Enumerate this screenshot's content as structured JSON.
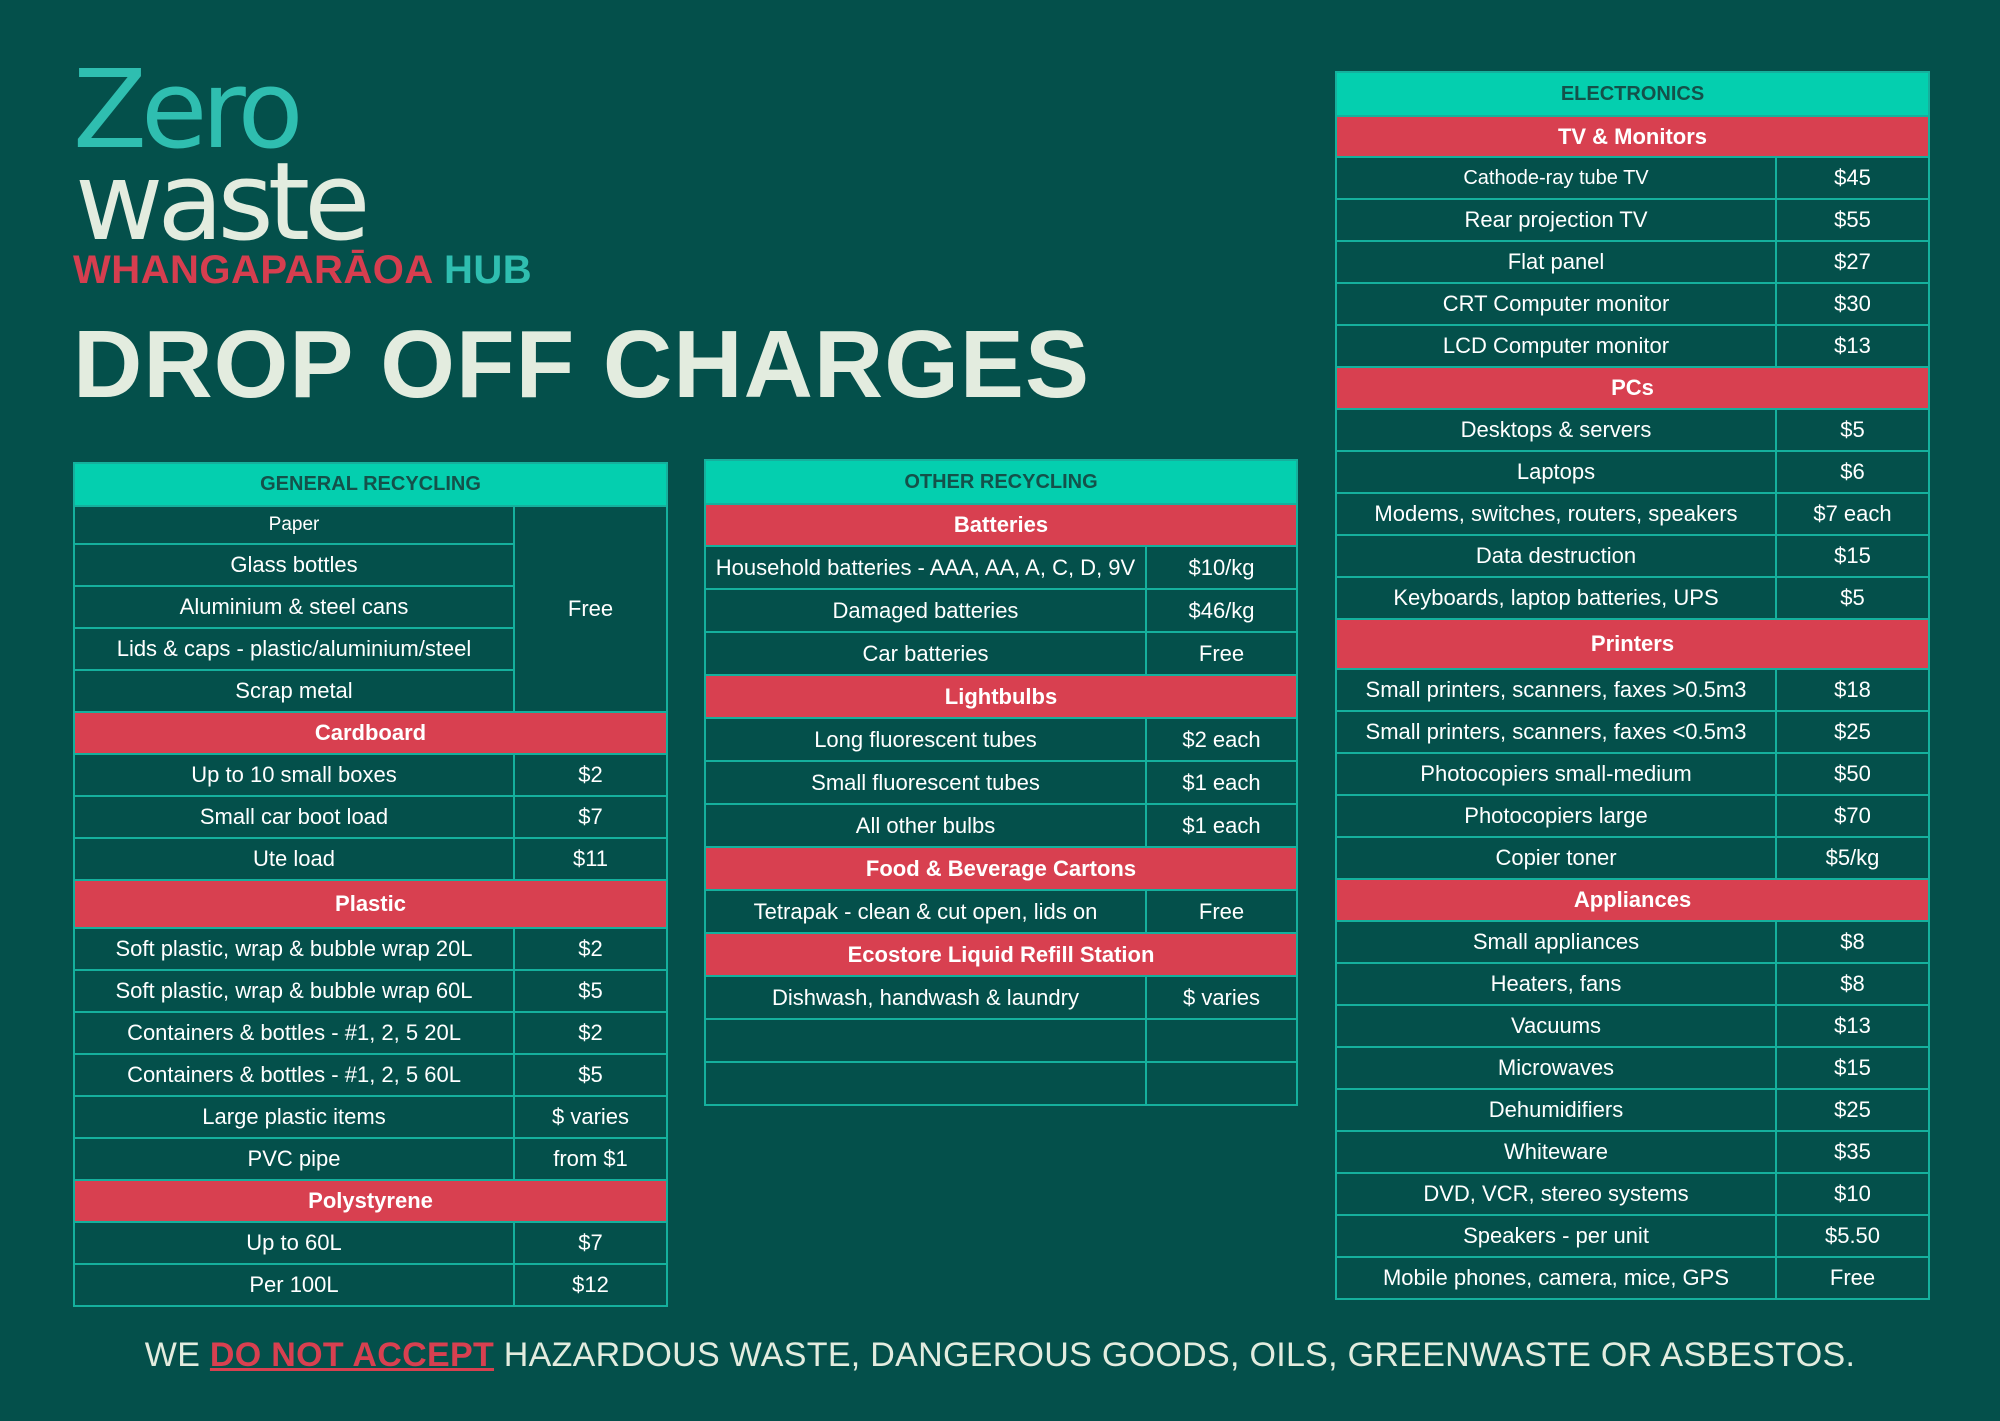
{
  "logo": {
    "line1": "Zero",
    "line2": "waste",
    "sub_red": "WHANGAPARĀOA",
    "sub_teal": "HUB"
  },
  "title": "DROP OFF CHARGES",
  "colors": {
    "background": "#04504b",
    "table_header": "#04cfaf",
    "section_header": "#d84050",
    "border": "#15b09d",
    "title_text": "#e3ecdf"
  },
  "general": {
    "header": "GENERAL RECYCLING",
    "free_items": [
      "Paper",
      "Glass bottles",
      "Aluminium & steel cans",
      "Lids & caps - plastic/aluminium/steel",
      "Scrap metal"
    ],
    "free_price": "Free",
    "cardboard": {
      "title": "Cardboard",
      "rows": [
        {
          "item": "Up to 10 small boxes",
          "price": "$2"
        },
        {
          "item": "Small car boot load",
          "price": "$7"
        },
        {
          "item": "Ute load",
          "price": "$11"
        }
      ]
    },
    "plastic": {
      "title": "Plastic",
      "rows": [
        {
          "item": "Soft plastic, wrap & bubble wrap 20L",
          "price": "$2"
        },
        {
          "item": "Soft plastic, wrap & bubble wrap 60L",
          "price": "$5"
        },
        {
          "item": "Containers & bottles - #1, 2, 5 20L",
          "price": "$2"
        },
        {
          "item": "Containers & bottles - #1, 2, 5 60L",
          "price": "$5"
        },
        {
          "item": "Large plastic items",
          "price": "$ varies"
        },
        {
          "item": "PVC pipe",
          "price": "from $1"
        }
      ]
    },
    "polystyrene": {
      "title": "Polystyrene",
      "rows": [
        {
          "item": "Up to 60L",
          "price": "$7"
        },
        {
          "item": "Per 100L",
          "price": "$12"
        }
      ]
    }
  },
  "other": {
    "header": "OTHER RECYCLING",
    "batteries": {
      "title": "Batteries",
      "rows": [
        {
          "item": "Household batteries - AAA, AA, A, C, D, 9V",
          "price": "$10/kg"
        },
        {
          "item": "Damaged batteries",
          "price": "$46/kg"
        },
        {
          "item": "Car batteries",
          "price": "Free"
        }
      ]
    },
    "lightbulbs": {
      "title": "Lightbulbs",
      "rows": [
        {
          "item": "Long fluorescent tubes",
          "price": "$2 each"
        },
        {
          "item": "Small fluorescent tubes",
          "price": "$1 each"
        },
        {
          "item": "All other bulbs",
          "price": "$1 each"
        }
      ]
    },
    "cartons": {
      "title": "Food & Beverage Cartons",
      "rows": [
        {
          "item": "Tetrapak - clean & cut open, lids on",
          "price": "Free"
        }
      ]
    },
    "ecostore": {
      "title": "Ecostore Liquid Refill Station",
      "rows": [
        {
          "item": "Dishwash, handwash & laundry",
          "price": "$ varies"
        }
      ]
    }
  },
  "electronics": {
    "header": "ELECTRONICS",
    "tv": {
      "title": "TV & Monitors",
      "rows": [
        {
          "item": "Cathode-ray tube TV",
          "price": "$45"
        },
        {
          "item": "Rear projection TV",
          "price": "$55"
        },
        {
          "item": "Flat panel",
          "price": "$27"
        },
        {
          "item": "CRT Computer monitor",
          "price": "$30"
        },
        {
          "item": "LCD Computer monitor",
          "price": "$13"
        }
      ]
    },
    "pcs": {
      "title": "PCs",
      "rows": [
        {
          "item": "Desktops & servers",
          "price": "$5"
        },
        {
          "item": "Laptops",
          "price": "$6"
        },
        {
          "item": "Modems, switches, routers, speakers",
          "price": "$7 each"
        },
        {
          "item": "Data destruction",
          "price": "$15"
        },
        {
          "item": "Keyboards, laptop batteries, UPS",
          "price": "$5"
        }
      ]
    },
    "printers": {
      "title": "Printers",
      "rows": [
        {
          "item": "Small printers, scanners, faxes >0.5m3",
          "price": "$18"
        },
        {
          "item": "Small printers, scanners, faxes <0.5m3",
          "price": "$25"
        },
        {
          "item": "Photocopiers small-medium",
          "price": "$50"
        },
        {
          "item": "Photocopiers large",
          "price": "$70"
        },
        {
          "item": "Copier toner",
          "price": "$5/kg"
        }
      ]
    },
    "appliances": {
      "title": "Appliances",
      "rows": [
        {
          "item": "Small appliances",
          "price": "$8"
        },
        {
          "item": "Heaters, fans",
          "price": "$8"
        },
        {
          "item": "Vacuums",
          "price": "$13"
        },
        {
          "item": "Microwaves",
          "price": "$15"
        },
        {
          "item": "Dehumidifiers",
          "price": "$25"
        },
        {
          "item": "Whiteware",
          "price": "$35"
        },
        {
          "item": "DVD, VCR, stereo systems",
          "price": "$10"
        },
        {
          "item": "Speakers - per unit",
          "price": "$5.50"
        },
        {
          "item": "Mobile phones, camera, mice, GPS",
          "price": "Free"
        }
      ]
    }
  },
  "footer": {
    "prefix": "WE",
    "emphasis": "DO NOT ACCEPT",
    "suffix": "HAZARDOUS WASTE, DANGEROUS GOODS, OILS, GREENWASTE OR ASBESTOS."
  }
}
